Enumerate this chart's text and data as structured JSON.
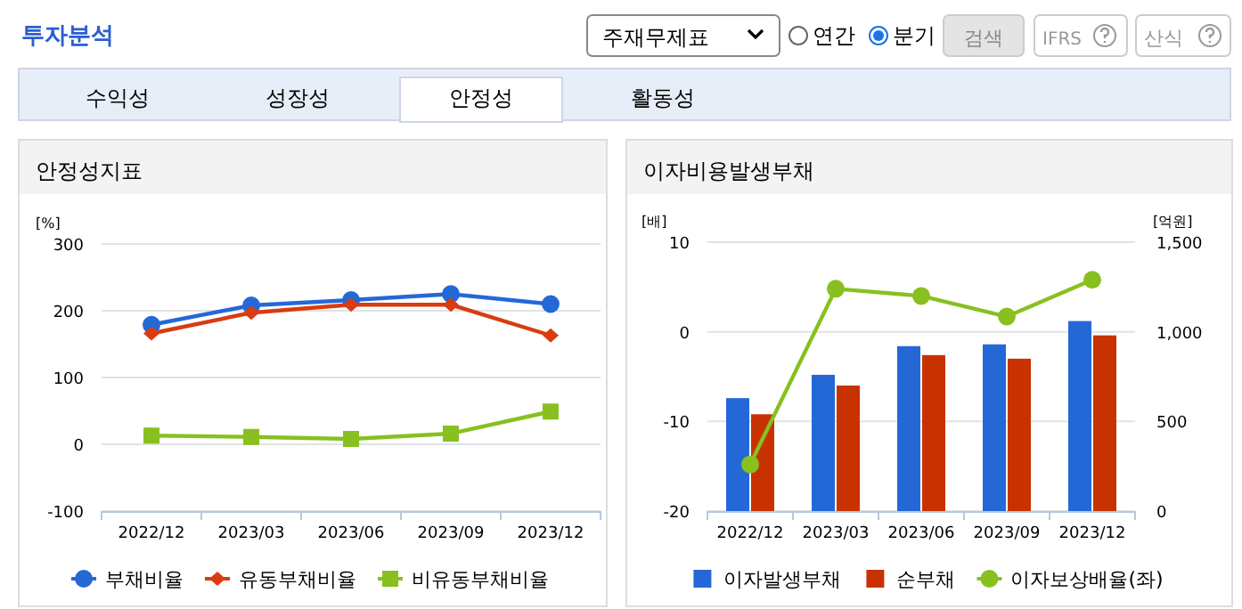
{
  "chart_data": [
    {
      "type": "other",
      "title": "투자분석",
      "annotations": [
        "주재무제표",
        "연간",
        "분기",
        "검색",
        "IFRS",
        "산식",
        "수익성",
        "성장성",
        "안정성",
        "활동성"
      ]
    },
    {
      "type": "line",
      "title": "안정성지표",
      "ylabel": "[%]",
      "categories": [
        "2022/12",
        "2023/03",
        "2023/06",
        "2023/09",
        "2023/12"
      ],
      "ylim": [
        -100,
        300
      ],
      "yticks": [
        -100,
        0,
        100,
        200,
        300
      ],
      "grid": "y",
      "legend": "bottom",
      "series": [
        {
          "name": "부채비율",
          "color": "#2468d8",
          "marker": "circle",
          "values": [
            179,
            208,
            216,
            225,
            210
          ]
        },
        {
          "name": "유동부채비율",
          "color": "#d83c10",
          "marker": "diamond",
          "values": [
            166,
            197,
            209,
            209,
            163
          ]
        },
        {
          "name": "비유동부채비율",
          "color": "#88c020",
          "marker": "square",
          "values": [
            13,
            11,
            8,
            16,
            49
          ]
        }
      ]
    },
    {
      "type": "bar",
      "title": "이자비용발생부채",
      "ylabel": "[배]",
      "y2label": "[억원]",
      "categories": [
        "2022/12",
        "2023/03",
        "2023/06",
        "2023/09",
        "2023/12"
      ],
      "ylim": [
        -20,
        10
      ],
      "yticks": [
        -20,
        -10,
        0,
        10
      ],
      "y2lim": [
        0,
        1500
      ],
      "y2ticks": [
        0,
        {
          "value": 500,
          "label": "500"
        },
        {
          "value": 1000,
          "label": "1,000"
        },
        {
          "value": 1500,
          "label": "1,500"
        }
      ],
      "grid": "y",
      "legend": "bottom",
      "series": [
        {
          "name": "이자발생부채",
          "color": "#2468d8",
          "axis": "y2",
          "values": [
            630,
            760,
            920,
            930,
            1060
          ]
        },
        {
          "name": "순부채",
          "color": "#c83200",
          "axis": "y2",
          "values": [
            540,
            700,
            870,
            850,
            980
          ]
        },
        {
          "name": "이자보상배율(좌)",
          "type": "line",
          "color": "#88c020",
          "marker": "circle",
          "values": [
            -14.8,
            4.8,
            4.0,
            1.7,
            5.8
          ]
        }
      ]
    }
  ]
}
